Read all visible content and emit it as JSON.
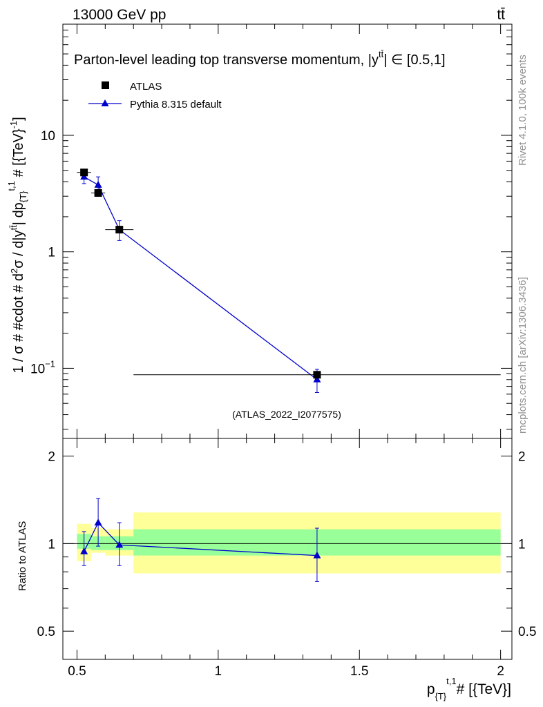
{
  "header": {
    "energy_label": "13000 GeV pp",
    "process_label": "tt̄"
  },
  "side_labels": {
    "rivet": "Rivet 4.1.0,  100k events",
    "source": "mcplots.cern.ch [arXiv:1306.3436]"
  },
  "colors": {
    "data": "#000000",
    "mc": "#0000cc",
    "band_inner": "#99ff99",
    "band_outer": "#ffff99",
    "watermark": "#a0a0a0"
  },
  "chart_data": {
    "type": "scatter",
    "title": "Parton-level leading top transverse momentum, |ỹ| ∈ [0.5,1]",
    "title_main": "Parton-level leading top transverse momentum, |",
    "title_tt": "tt̄",
    "title_y": "y",
    "title_range": "| ∈ [0.5,1]",
    "xlabel": "p_{T}^{t,1} # [{TeV}]",
    "xlabel_p": "p",
    "xlabel_sub": "{T}",
    "xlabel_sup": "t,1",
    "xlabel_rest": "# [{TeV}]",
    "ylabel": "1 / σ # #cdot # d²σ / d|y^{tt̄}| dp_{T}^{t,1} # [{TeV}]⁻¹",
    "ylabel_parts": {
      "a": "1 / σ # #cdot # d",
      "a_sup": "2",
      "b": "σ / d|y",
      "b_sup": "tt̄",
      "c": "| dp",
      "c_sub": "{T}",
      "c_sup": "t,1",
      "d": " # [{TeV}",
      "d_sup": "-1",
      "e": "]"
    },
    "ratio_ylabel": "Ratio to ATLAS",
    "watermark": "(ATLAS_2022_I2077575)",
    "xlim": [
      0.45,
      2.04
    ],
    "ylim_main": [
      0.025,
      90
    ],
    "ylim_ratio": [
      0.4,
      2.3
    ],
    "x_ticks": [
      {
        "value": 0.5,
        "label": "0.5"
      },
      {
        "value": 1.0,
        "label": "1"
      },
      {
        "value": 1.5,
        "label": "1.5"
      },
      {
        "value": 2.0,
        "label": "2"
      }
    ],
    "y_ticks_main": [
      {
        "value": 10,
        "label": "10"
      },
      {
        "value": 1,
        "label": "1"
      },
      {
        "value": 0.1,
        "label": "10",
        "exp": "−1"
      }
    ],
    "y_ticks_ratio": [
      {
        "value": 2,
        "label": "2"
      },
      {
        "value": 1,
        "label": "1"
      },
      {
        "value": 0.5,
        "label": "0.5"
      }
    ],
    "legend": [
      {
        "name": "ATLAS",
        "marker": "square"
      },
      {
        "name": "Pythia 8.315 default",
        "marker": "triangle"
      }
    ],
    "series": [
      {
        "name": "ATLAS",
        "x": [
          0.525,
          0.575,
          0.65,
          1.35
        ],
        "xerr": [
          0.025,
          0.025,
          0.05,
          0.65
        ],
        "y": [
          4.8,
          3.2,
          1.55,
          0.088
        ],
        "yerr": [
          0.25,
          0.18,
          0.1,
          0.006
        ]
      },
      {
        "name": "Pythia 8.315 default",
        "x": [
          0.525,
          0.575,
          0.65,
          1.35
        ],
        "y": [
          4.4,
          3.75,
          1.55,
          0.08
        ],
        "yerr": [
          0.55,
          0.65,
          0.3,
          0.018
        ]
      }
    ],
    "ratio": {
      "x": [
        0.525,
        0.575,
        0.65,
        1.35
      ],
      "values": [
        0.94,
        1.18,
        0.99,
        0.91
      ],
      "err_low": [
        0.1,
        0.2,
        0.15,
        0.17
      ],
      "err_high": [
        0.16,
        0.25,
        0.19,
        0.22
      ],
      "bands": [
        {
          "x0": 0.5,
          "x1": 0.55,
          "inner": [
            0.96,
            1.08
          ],
          "outer": [
            0.87,
            1.17
          ]
        },
        {
          "x0": 0.55,
          "x1": 0.6,
          "inner": [
            0.95,
            1.06
          ],
          "outer": [
            0.93,
            1.13
          ]
        },
        {
          "x0": 0.6,
          "x1": 0.7,
          "inner": [
            0.95,
            1.06
          ],
          "outer": [
            0.91,
            1.12
          ]
        },
        {
          "x0": 0.7,
          "x1": 2.0,
          "inner": [
            0.91,
            1.12
          ],
          "outer": [
            0.79,
            1.28
          ]
        }
      ]
    }
  }
}
